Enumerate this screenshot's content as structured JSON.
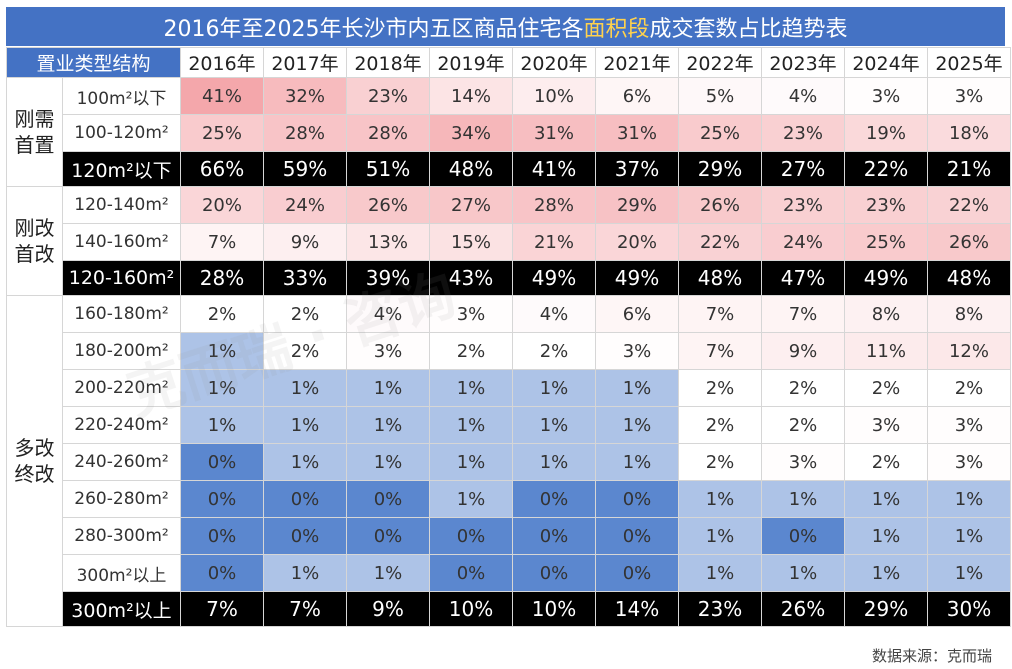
{
  "title": {
    "before": "2016年至2025年长沙市内五区商品住宅各",
    "highlight": "面积段",
    "after": "成交套数占比趋势表"
  },
  "header_label": "置业类型结构",
  "source": "数据来源：克而瑞",
  "colors": {
    "title_bg": "#4472c4",
    "highlight": "#ffd24d",
    "summary_bg": "#000000",
    "high": "#f4a7ab",
    "mid": "#ffffff",
    "low": "#5b87cf"
  },
  "chart_data": {
    "type": "table",
    "columns": [
      "2016年",
      "2017年",
      "2018年",
      "2019年",
      "2020年",
      "2021年",
      "2022年",
      "2023年",
      "2024年",
      "2025年"
    ],
    "groups": [
      {
        "label": "刚需首置",
        "rows": [
          {
            "label": "100m²以下",
            "values": [
              "41%",
              "32%",
              "23%",
              "14%",
              "10%",
              "6%",
              "5%",
              "4%",
              "3%",
              "3%"
            ]
          },
          {
            "label": "100-120m²",
            "values": [
              "25%",
              "28%",
              "28%",
              "34%",
              "31%",
              "31%",
              "25%",
              "23%",
              "19%",
              "18%"
            ]
          }
        ],
        "summary": {
          "label": "120m²以下",
          "values": [
            "66%",
            "59%",
            "51%",
            "48%",
            "41%",
            "37%",
            "29%",
            "27%",
            "22%",
            "21%"
          ]
        }
      },
      {
        "label": "刚改首改",
        "rows": [
          {
            "label": "120-140m²",
            "values": [
              "20%",
              "24%",
              "26%",
              "27%",
              "28%",
              "29%",
              "26%",
              "23%",
              "23%",
              "22%"
            ]
          },
          {
            "label": "140-160m²",
            "values": [
              "7%",
              "9%",
              "13%",
              "15%",
              "21%",
              "20%",
              "22%",
              "24%",
              "25%",
              "26%"
            ]
          }
        ],
        "summary": {
          "label": "120-160m²",
          "values": [
            "28%",
            "33%",
            "39%",
            "43%",
            "49%",
            "49%",
            "48%",
            "47%",
            "49%",
            "48%"
          ]
        }
      },
      {
        "label": "多改终改",
        "rows": [
          {
            "label": "160-180m²",
            "values": [
              "2%",
              "2%",
              "4%",
              "3%",
              "4%",
              "6%",
              "7%",
              "7%",
              "8%",
              "8%"
            ]
          },
          {
            "label": "180-200m²",
            "values": [
              "1%",
              "2%",
              "3%",
              "2%",
              "2%",
              "3%",
              "7%",
              "9%",
              "11%",
              "12%"
            ]
          },
          {
            "label": "200-220m²",
            "values": [
              "1%",
              "1%",
              "1%",
              "1%",
              "1%",
              "1%",
              "2%",
              "2%",
              "2%",
              "2%"
            ]
          },
          {
            "label": "220-240m²",
            "values": [
              "1%",
              "1%",
              "1%",
              "1%",
              "1%",
              "1%",
              "2%",
              "2%",
              "3%",
              "3%"
            ]
          },
          {
            "label": "240-260m²",
            "values": [
              "0%",
              "1%",
              "1%",
              "1%",
              "1%",
              "1%",
              "2%",
              "3%",
              "2%",
              "3%"
            ]
          },
          {
            "label": "260-280m²",
            "values": [
              "0%",
              "0%",
              "0%",
              "1%",
              "0%",
              "0%",
              "1%",
              "1%",
              "1%",
              "1%"
            ]
          },
          {
            "label": "280-300m²",
            "values": [
              "0%",
              "0%",
              "0%",
              "0%",
              "0%",
              "0%",
              "1%",
              "0%",
              "1%",
              "1%"
            ]
          },
          {
            "label": "300m²以上",
            "values": [
              "0%",
              "1%",
              "1%",
              "0%",
              "0%",
              "0%",
              "1%",
              "1%",
              "1%",
              "1%"
            ]
          }
        ],
        "summary": {
          "label": "300m²以上",
          "values": [
            "7%",
            "7%",
            "9%",
            "10%",
            "10%",
            "14%",
            "23%",
            "26%",
            "29%",
            "30%"
          ]
        }
      }
    ]
  }
}
